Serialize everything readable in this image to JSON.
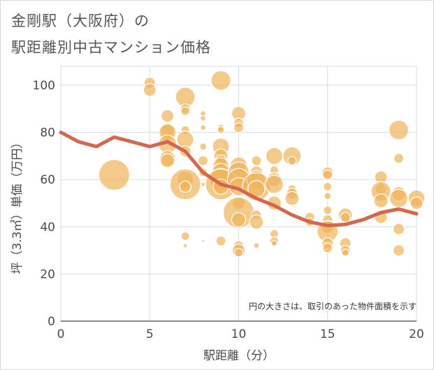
{
  "title_line1": "金剛駅（大阪府）の",
  "title_line2": "駅距離別中古マンション価格",
  "chart_data": {
    "type": "scatter",
    "xlabel": "駅距離（分）",
    "ylabel": "坪（3.3㎡）単価（万円）",
    "xlim": [
      0,
      20
    ],
    "ylim": [
      0,
      108
    ],
    "x_ticks": [
      "0",
      "5",
      "10",
      "15",
      "20"
    ],
    "y_ticks": [
      "0",
      "20",
      "40",
      "60",
      "80",
      "100"
    ],
    "grid": true,
    "annotation": "円の大きさは、取引のあった物件面積を示す",
    "colors": {
      "bubble": "#f0b45a",
      "line": "#d2694e",
      "grid": "#d3dde6"
    },
    "trend_line": {
      "x": [
        0,
        1,
        2,
        3,
        4,
        5,
        6,
        7,
        8,
        9,
        10,
        11,
        12,
        13,
        14,
        15,
        16,
        17,
        18,
        19,
        20
      ],
      "y": [
        80,
        76,
        74,
        78,
        76,
        74,
        76,
        72,
        63,
        58,
        56,
        52,
        49,
        45,
        42,
        40.5,
        41,
        43,
        46,
        47.5,
        45.5
      ]
    },
    "points": [
      {
        "x": 3,
        "y": 62,
        "r": 22
      },
      {
        "x": 5,
        "y": 101,
        "r": 8
      },
      {
        "x": 5,
        "y": 98,
        "r": 9
      },
      {
        "x": 6,
        "y": 87,
        "r": 9
      },
      {
        "x": 6,
        "y": 81,
        "r": 10
      },
      {
        "x": 6,
        "y": 80,
        "r": 12
      },
      {
        "x": 6,
        "y": 75,
        "r": 13
      },
      {
        "x": 6,
        "y": 69,
        "r": 11
      },
      {
        "x": 6,
        "y": 68,
        "r": 10
      },
      {
        "x": 7,
        "y": 95,
        "r": 14
      },
      {
        "x": 7,
        "y": 90,
        "r": 7
      },
      {
        "x": 7,
        "y": 89,
        "r": 6
      },
      {
        "x": 7,
        "y": 81,
        "r": 6
      },
      {
        "x": 7,
        "y": 77,
        "r": 12
      },
      {
        "x": 7,
        "y": 72,
        "r": 8
      },
      {
        "x": 7,
        "y": 60,
        "r": 12
      },
      {
        "x": 7,
        "y": 58,
        "r": 22
      },
      {
        "x": 7,
        "y": 57,
        "r": 8
      },
      {
        "x": 7,
        "y": 36,
        "r": 6
      },
      {
        "x": 7,
        "y": 32,
        "r": 3
      },
      {
        "x": 8,
        "y": 88,
        "r": 4
      },
      {
        "x": 8,
        "y": 86,
        "r": 4
      },
      {
        "x": 8,
        "y": 82,
        "r": 4
      },
      {
        "x": 8,
        "y": 74,
        "r": 5
      },
      {
        "x": 8,
        "y": 68,
        "r": 7
      },
      {
        "x": 8,
        "y": 63,
        "r": 6
      },
      {
        "x": 8,
        "y": 58,
        "r": 3
      },
      {
        "x": 8,
        "y": 34,
        "r": 2
      },
      {
        "x": 9,
        "y": 102,
        "r": 14
      },
      {
        "x": 9,
        "y": 82,
        "r": 5
      },
      {
        "x": 9,
        "y": 81,
        "r": 5
      },
      {
        "x": 9,
        "y": 74,
        "r": 12
      },
      {
        "x": 9,
        "y": 70,
        "r": 10
      },
      {
        "x": 9,
        "y": 68,
        "r": 8
      },
      {
        "x": 9,
        "y": 66,
        "r": 11
      },
      {
        "x": 9,
        "y": 63,
        "r": 13
      },
      {
        "x": 9,
        "y": 60,
        "r": 16
      },
      {
        "x": 9,
        "y": 58,
        "r": 22
      },
      {
        "x": 9,
        "y": 57,
        "r": 11
      },
      {
        "x": 9,
        "y": 34,
        "r": 7
      },
      {
        "x": 10,
        "y": 88,
        "r": 10
      },
      {
        "x": 10,
        "y": 84,
        "r": 7
      },
      {
        "x": 10,
        "y": 82,
        "r": 7
      },
      {
        "x": 10,
        "y": 66,
        "r": 12
      },
      {
        "x": 10,
        "y": 63,
        "r": 15
      },
      {
        "x": 10,
        "y": 60,
        "r": 16
      },
      {
        "x": 10,
        "y": 57,
        "r": 13
      },
      {
        "x": 10,
        "y": 50,
        "r": 9
      },
      {
        "x": 10,
        "y": 46,
        "r": 22
      },
      {
        "x": 10,
        "y": 43,
        "r": 10
      },
      {
        "x": 10,
        "y": 32,
        "r": 7
      },
      {
        "x": 10,
        "y": 30,
        "r": 9
      },
      {
        "x": 10,
        "y": 29,
        "r": 6
      },
      {
        "x": 11,
        "y": 68,
        "r": 7
      },
      {
        "x": 11,
        "y": 63,
        "r": 9
      },
      {
        "x": 11,
        "y": 60,
        "r": 13
      },
      {
        "x": 11,
        "y": 57,
        "r": 20
      },
      {
        "x": 11,
        "y": 56,
        "r": 12
      },
      {
        "x": 11,
        "y": 45,
        "r": 7
      },
      {
        "x": 11,
        "y": 42,
        "r": 10
      },
      {
        "x": 11,
        "y": 32,
        "r": 4
      },
      {
        "x": 12,
        "y": 70,
        "r": 12
      },
      {
        "x": 12,
        "y": 64,
        "r": 6
      },
      {
        "x": 12,
        "y": 60,
        "r": 10
      },
      {
        "x": 12,
        "y": 58,
        "r": 13
      },
      {
        "x": 12,
        "y": 50,
        "r": 10
      },
      {
        "x": 12,
        "y": 37,
        "r": 6
      },
      {
        "x": 12,
        "y": 34,
        "r": 6
      },
      {
        "x": 12,
        "y": 33,
        "r": 4
      },
      {
        "x": 13,
        "y": 70,
        "r": 13
      },
      {
        "x": 13,
        "y": 68,
        "r": 6
      },
      {
        "x": 13,
        "y": 56,
        "r": 6
      },
      {
        "x": 13,
        "y": 54,
        "r": 8
      },
      {
        "x": 13,
        "y": 52,
        "r": 10
      },
      {
        "x": 14,
        "y": 44,
        "r": 7
      },
      {
        "x": 14,
        "y": 42,
        "r": 6
      },
      {
        "x": 15,
        "y": 63,
        "r": 8
      },
      {
        "x": 15,
        "y": 62,
        "r": 7
      },
      {
        "x": 15,
        "y": 57,
        "r": 6
      },
      {
        "x": 15,
        "y": 53,
        "r": 5
      },
      {
        "x": 15,
        "y": 47,
        "r": 6
      },
      {
        "x": 15,
        "y": 43,
        "r": 7
      },
      {
        "x": 15,
        "y": 40,
        "r": 9
      },
      {
        "x": 15,
        "y": 38,
        "r": 15
      },
      {
        "x": 15,
        "y": 33,
        "r": 8
      },
      {
        "x": 15,
        "y": 31,
        "r": 7
      },
      {
        "x": 16,
        "y": 45,
        "r": 10
      },
      {
        "x": 16,
        "y": 44,
        "r": 7
      },
      {
        "x": 16,
        "y": 33,
        "r": 8
      },
      {
        "x": 16,
        "y": 30,
        "r": 7
      },
      {
        "x": 16,
        "y": 29,
        "r": 5
      },
      {
        "x": 18,
        "y": 61,
        "r": 9
      },
      {
        "x": 18,
        "y": 56,
        "r": 8
      },
      {
        "x": 18,
        "y": 55,
        "r": 14
      },
      {
        "x": 18,
        "y": 51,
        "r": 10
      },
      {
        "x": 18,
        "y": 44,
        "r": 9
      },
      {
        "x": 19,
        "y": 81,
        "r": 14
      },
      {
        "x": 19,
        "y": 69,
        "r": 7
      },
      {
        "x": 19,
        "y": 54,
        "r": 10
      },
      {
        "x": 19,
        "y": 52,
        "r": 13
      },
      {
        "x": 19,
        "y": 39,
        "r": 8
      },
      {
        "x": 19,
        "y": 30,
        "r": 8
      },
      {
        "x": 20,
        "y": 52,
        "r": 12
      },
      {
        "x": 20,
        "y": 50,
        "r": 9
      }
    ]
  }
}
